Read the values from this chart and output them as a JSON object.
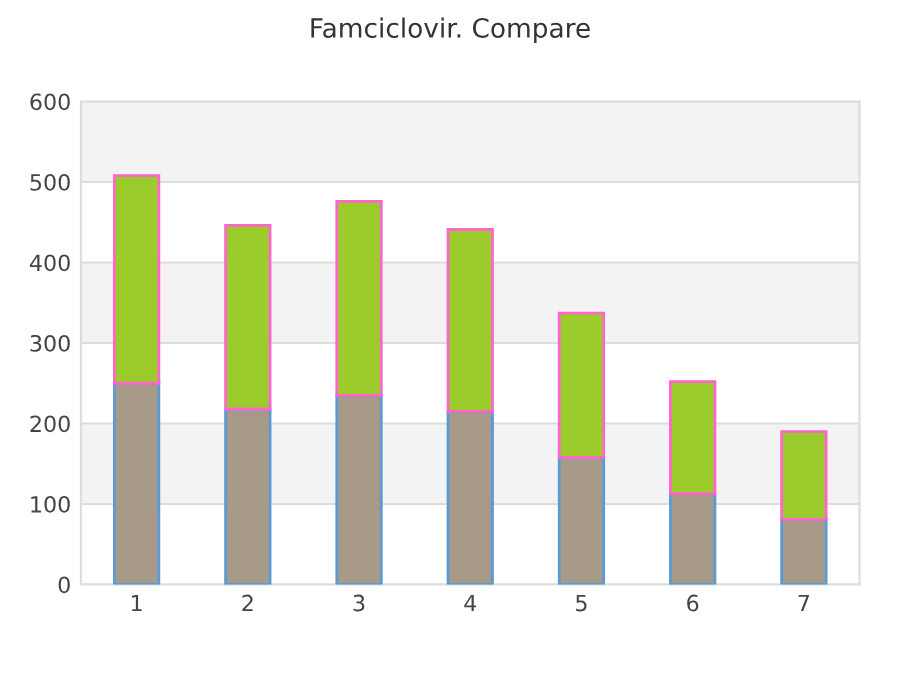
{
  "chart_data": {
    "type": "bar",
    "title": "Famciclovir. Compare",
    "categories": [
      "1",
      "2",
      "3",
      "4",
      "5",
      "6",
      "7"
    ],
    "stacked": true,
    "series": [
      {
        "color": "#a89a88",
        "values": [
          250,
          218,
          235,
          215,
          158,
          113,
          81
        ]
      },
      {
        "color": "#9ccc2c",
        "values": [
          258,
          228,
          241,
          226,
          179,
          139,
          109
        ]
      }
    ],
    "ylim": [
      0,
      600
    ],
    "yticks": [
      0,
      100,
      200,
      300,
      400,
      500,
      600
    ],
    "grid": "y",
    "bands": [
      {
        "axis": "y",
        "from": 100,
        "to": 200,
        "color": "#f3f3f3"
      },
      {
        "axis": "y",
        "from": 300,
        "to": 400,
        "color": "#f3f3f3"
      },
      {
        "axis": "y",
        "from": 500,
        "to": 600,
        "color": "#f3f3f3"
      }
    ]
  }
}
